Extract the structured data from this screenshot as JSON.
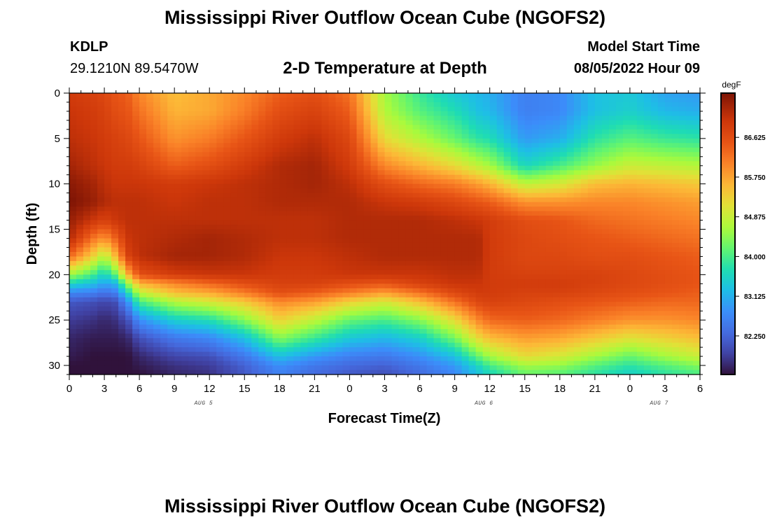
{
  "header": {
    "title": "Mississippi River Outflow Ocean Cube (NGOFS2)",
    "station_id": "KDLP",
    "station_coords": "29.1210N  89.5470W",
    "chart_title": "2-D Temperature at Depth",
    "start_label": "Model Start Time",
    "start_value": "08/05/2022 Hour 09"
  },
  "footer": {
    "title": "Mississippi River Outflow Ocean Cube (NGOFS2)"
  },
  "chart_data": {
    "type": "heatmap",
    "title": "2-D Temperature at Depth",
    "xlabel": "Forecast Time(Z)",
    "ylabel": "Depth (ft)",
    "x_range_hours": [
      0,
      54
    ],
    "ylim": [
      0,
      31
    ],
    "y_ticks": [
      0,
      5,
      10,
      15,
      20,
      25,
      30
    ],
    "x_tick_labels": [
      "0",
      "3",
      "6",
      "9",
      "12",
      "15",
      "18",
      "21",
      "0",
      "3",
      "6",
      "9",
      "12",
      "15",
      "18",
      "21",
      "0",
      "3",
      "6"
    ],
    "date_labels": [
      {
        "text": "AUG 5",
        "hour": 11.5
      },
      {
        "text": "AUG 6",
        "hour": 35.5
      },
      {
        "text": "AUG 7",
        "hour": 50.5
      }
    ],
    "colorbar": {
      "unit": "degF",
      "min": 81.4,
      "max": 87.6,
      "ticks": [
        "86.625",
        "85.750",
        "84.875",
        "84.000",
        "83.125",
        "82.250"
      ]
    },
    "profile_hours": [
      0,
      2,
      3,
      4,
      5,
      6,
      9,
      12,
      15,
      18,
      21,
      24,
      27,
      30,
      33,
      35,
      36,
      39,
      42,
      45,
      48,
      51,
      54
    ],
    "profile_depths": [
      0,
      2,
      5,
      8,
      10,
      12,
      14,
      16,
      18,
      20,
      21,
      22,
      23,
      25,
      27,
      29,
      30,
      31
    ],
    "temperature": [
      [
        86.9,
        87.0,
        87.1,
        87.3,
        87.5,
        87.6,
        87.4,
        87.2,
        86.3,
        84.6,
        83.6,
        82.7,
        82.1,
        81.8,
        81.6,
        81.5,
        81.4,
        81.4
      ],
      [
        86.8,
        86.9,
        87.0,
        87.1,
        87.3,
        87.4,
        87.0,
        86.2,
        85.3,
        84.0,
        83.3,
        82.6,
        82.0,
        81.7,
        81.5,
        81.4,
        81.4,
        81.4
      ],
      [
        86.7,
        86.8,
        86.9,
        87.0,
        87.1,
        87.2,
        86.8,
        85.9,
        84.7,
        83.5,
        83.0,
        82.4,
        81.9,
        81.6,
        81.5,
        81.4,
        81.4,
        81.4
      ],
      [
        86.5,
        86.6,
        86.8,
        86.9,
        87.0,
        87.1,
        87.0,
        86.4,
        85.6,
        84.2,
        83.2,
        82.6,
        82.0,
        81.7,
        81.5,
        81.4,
        81.4,
        81.4
      ],
      [
        86.4,
        86.5,
        86.7,
        86.9,
        87.0,
        87.1,
        87.1,
        87.0,
        86.8,
        85.6,
        84.5,
        83.6,
        82.8,
        82.0,
        81.6,
        81.4,
        81.4,
        81.4
      ],
      [
        86.0,
        86.2,
        86.5,
        86.8,
        87.0,
        87.1,
        87.1,
        87.1,
        87.1,
        86.6,
        85.6,
        84.8,
        84.0,
        82.8,
        82.0,
        81.6,
        81.5,
        81.4
      ],
      [
        85.5,
        85.6,
        85.9,
        86.4,
        86.9,
        87.0,
        87.1,
        87.2,
        87.3,
        86.9,
        86.0,
        85.5,
        84.7,
        83.5,
        82.5,
        81.9,
        81.7,
        81.6
      ],
      [
        85.7,
        85.7,
        86.1,
        86.6,
        87.0,
        87.1,
        87.1,
        87.3,
        87.3,
        87.0,
        86.3,
        85.7,
        85.0,
        83.7,
        82.7,
        82.0,
        81.8,
        81.7
      ],
      [
        86.0,
        86.1,
        86.5,
        86.9,
        87.1,
        87.1,
        87.1,
        87.2,
        87.2,
        87.0,
        86.6,
        86.1,
        85.4,
        84.4,
        83.3,
        82.5,
        82.2,
        82.1
      ],
      [
        86.4,
        86.6,
        86.9,
        87.2,
        87.2,
        87.2,
        87.1,
        87.1,
        87.0,
        86.9,
        86.8,
        86.6,
        86.0,
        85.3,
        84.4,
        83.3,
        82.8,
        82.6
      ],
      [
        86.6,
        86.8,
        87.1,
        87.3,
        87.3,
        87.2,
        87.1,
        87.1,
        87.0,
        86.9,
        86.8,
        86.4,
        85.8,
        84.8,
        83.9,
        82.9,
        82.5,
        82.3
      ],
      [
        86.2,
        86.4,
        86.7,
        86.9,
        87.1,
        87.2,
        87.2,
        87.2,
        87.1,
        87.0,
        86.6,
        86.1,
        85.3,
        84.2,
        83.4,
        82.6,
        82.3,
        82.1
      ],
      [
        84.6,
        84.7,
        85.2,
        86.0,
        86.6,
        87.0,
        87.2,
        87.2,
        87.2,
        87.0,
        86.5,
        85.8,
        85.0,
        84.0,
        83.2,
        82.5,
        82.2,
        82.0
      ],
      [
        83.9,
        84.1,
        84.7,
        85.6,
        86.3,
        86.9,
        87.2,
        87.2,
        87.2,
        87.0,
        86.8,
        86.2,
        85.5,
        84.4,
        83.5,
        82.8,
        82.5,
        82.3
      ],
      [
        83.4,
        83.7,
        84.2,
        85.2,
        86.1,
        86.7,
        87.1,
        87.2,
        87.2,
        87.1,
        87.0,
        86.7,
        86.2,
        85.2,
        84.3,
        83.3,
        82.9,
        82.7
      ],
      [
        83.2,
        83.3,
        83.8,
        84.8,
        85.8,
        86.5,
        87.0,
        87.2,
        87.2,
        87.1,
        87.0,
        86.9,
        86.7,
        86.0,
        85.2,
        84.2,
        83.6,
        83.3
      ],
      [
        83.1,
        83.2,
        83.7,
        84.6,
        85.6,
        86.4,
        86.9,
        86.9,
        86.9,
        86.9,
        86.9,
        86.9,
        86.8,
        86.3,
        85.5,
        84.6,
        84.0,
        83.6
      ],
      [
        82.6,
        82.6,
        82.9,
        83.6,
        84.8,
        85.9,
        86.6,
        86.7,
        86.7,
        86.8,
        86.9,
        86.8,
        86.7,
        86.4,
        85.8,
        85.2,
        84.6,
        84.2
      ],
      [
        82.7,
        82.7,
        83.1,
        84.0,
        85.0,
        85.9,
        86.5,
        86.6,
        86.7,
        86.8,
        86.9,
        86.8,
        86.6,
        86.3,
        85.7,
        85.0,
        84.5,
        84.1
      ],
      [
        83.3,
        83.3,
        83.8,
        84.5,
        85.5,
        86.0,
        86.3,
        86.5,
        86.6,
        86.8,
        86.8,
        86.7,
        86.5,
        86.1,
        85.4,
        84.6,
        84.1,
        83.8
      ],
      [
        83.4,
        83.5,
        84.1,
        84.9,
        85.6,
        86.0,
        86.2,
        86.4,
        86.6,
        86.7,
        86.7,
        86.6,
        86.4,
        85.9,
        85.1,
        84.2,
        83.8,
        83.5
      ],
      [
        83.0,
        83.2,
        83.9,
        84.8,
        85.5,
        85.9,
        86.1,
        86.3,
        86.5,
        86.6,
        86.6,
        86.5,
        86.3,
        85.9,
        85.3,
        84.6,
        84.1,
        83.8
      ],
      [
        82.9,
        83.1,
        83.8,
        84.7,
        85.4,
        85.8,
        86.0,
        86.2,
        86.4,
        86.5,
        86.5,
        86.4,
        86.3,
        86.0,
        85.5,
        84.9,
        84.4,
        84.0
      ]
    ]
  }
}
